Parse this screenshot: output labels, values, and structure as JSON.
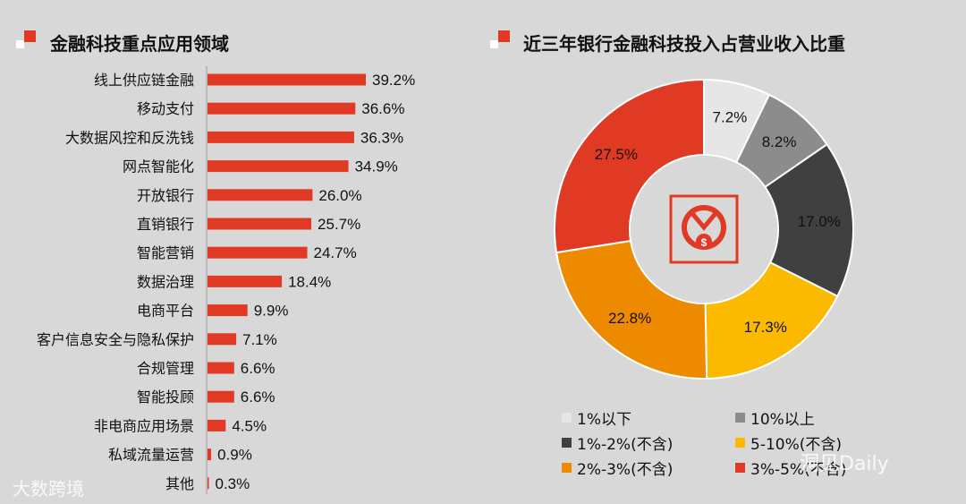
{
  "left_title": "金融科技重点应用领域",
  "right_title": "近三年银行金融科技投入占营业收入比重",
  "watermarks": {
    "left": "大数跨境",
    "right": "洞见Daily"
  },
  "colors": {
    "accent": "#e03a25",
    "background": "#d8d8d8"
  },
  "chart_data": [
    {
      "type": "bar",
      "orientation": "horizontal",
      "title": "金融科技重点应用领域",
      "categories": [
        "线上供应链金融",
        "移动支付",
        "大数据风控和反洗钱",
        "网点智能化",
        "开放银行",
        "直销银行",
        "智能营销",
        "数据治理",
        "电商平台",
        "客户信息安全与隐私保护",
        "合规管理",
        "智能投顾",
        "非电商应用场景",
        "私域流量运营",
        "其他"
      ],
      "values": [
        39.2,
        36.6,
        36.3,
        34.9,
        26.0,
        25.7,
        24.7,
        18.4,
        9.9,
        7.1,
        6.6,
        6.6,
        4.5,
        0.9,
        0.3
      ],
      "labels": [
        "39.2%",
        "36.6%",
        "36.3%",
        "34.9%",
        "26.0%",
        "25.7%",
        "24.7%",
        "18.4%",
        "9.9%",
        "7.1%",
        "6.6%",
        "6.6%",
        "4.5%",
        "0.9%",
        "0.3%"
      ],
      "color": "#e03a25"
    },
    {
      "type": "pie",
      "style": "donut",
      "title": "近三年银行金融科技投入占营业收入比重",
      "slices": [
        {
          "name": "1%以下",
          "value": 7.2,
          "label": "7.2%",
          "color": "#e6e6e6"
        },
        {
          "name": "10%以上",
          "value": 8.2,
          "label": "8.2%",
          "color": "#8c8c8c"
        },
        {
          "name": "1%-2%(不含)",
          "value": 17.0,
          "label": "17.0%",
          "color": "#404040"
        },
        {
          "name": "5-10%(不含)",
          "value": 17.3,
          "label": "17.3%",
          "color": "#fbb900"
        },
        {
          "name": "2%-3%(不含)",
          "value": 22.8,
          "label": "22.8%",
          "color": "#ee8a00"
        },
        {
          "name": "3%-5%(不含)",
          "value": 27.5,
          "label": "27.5%",
          "color": "#e03a25"
        }
      ],
      "legend": [
        "1%以下",
        "10%以上",
        "1%-2%(不含)",
        "5-10%(不含)",
        "2%-3%(不含)",
        "3%-5%(不含)"
      ],
      "legend_placement": "bottom"
    }
  ]
}
